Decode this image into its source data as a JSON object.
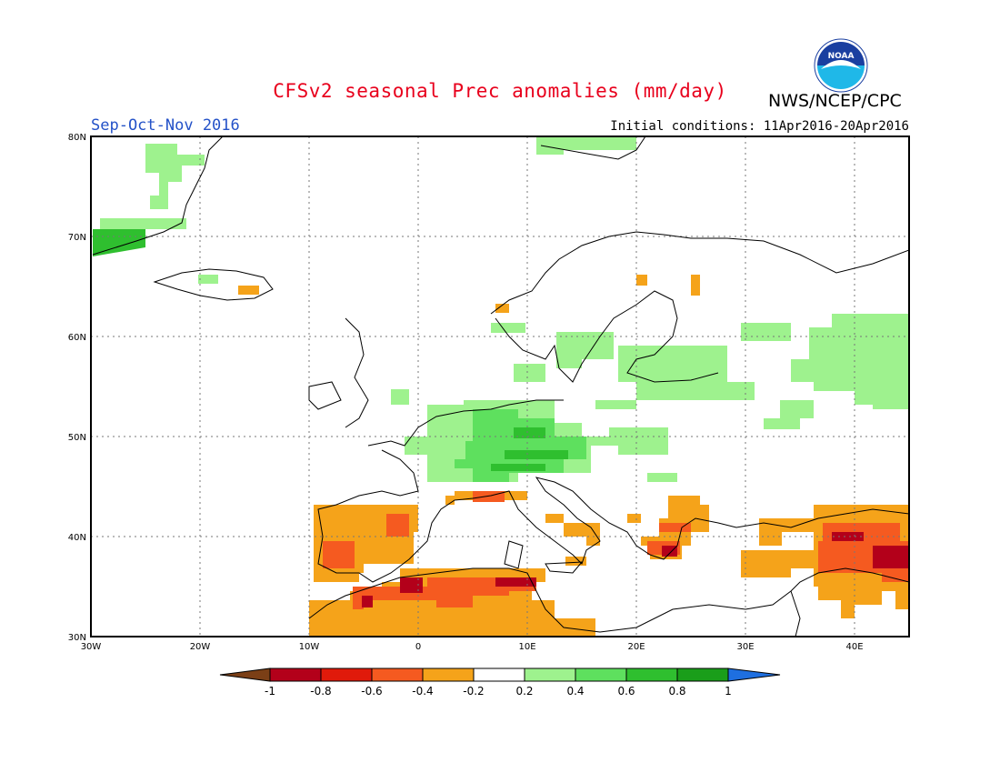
{
  "header": {
    "title": "CFSv2 seasonal Prec anomalies (mm/day)",
    "credit": "NWS/NCEP/CPC",
    "season": "Sep-Oct-Nov 2016",
    "initial_conditions": "Initial conditions: 11Apr2016-20Apr2016",
    "logo_text": "NOAA"
  },
  "map": {
    "lon_labels": [
      "30W",
      "20W",
      "10W",
      "0",
      "10E",
      "20E",
      "30E",
      "40E"
    ],
    "lat_labels": [
      "80N",
      "70N",
      "60N",
      "50N",
      "40N",
      "30N"
    ],
    "lon_range": [
      -30,
      45
    ],
    "lat_range": [
      30,
      80
    ]
  },
  "legend": {
    "tick_labels": [
      "-1",
      "-0.8",
      "-0.6",
      "-0.4",
      "-0.2",
      "0.2",
      "0.4",
      "0.6",
      "0.8",
      "1"
    ],
    "colors": [
      "#7b3f16",
      "#b3001a",
      "#e01a0b",
      "#f55a20",
      "#f5a31a",
      "#ffffff",
      "#9ef28e",
      "#5ee05e",
      "#2fbf2f",
      "#1a9e1a",
      "#1e6fe0"
    ]
  },
  "anomaly_regions": [
    {
      "name": "greenland-green",
      "level": "0.2-0.4",
      "color": "#9ef28e"
    },
    {
      "name": "central-europe-green",
      "level": "0.2-0.6",
      "color": "#5ee05e"
    },
    {
      "name": "russia-green",
      "level": "0.2-0.4",
      "color": "#9ef28e"
    },
    {
      "name": "iberia-orange",
      "level": "-0.4",
      "color": "#f5a31a"
    },
    {
      "name": "north-africa-red",
      "level": "-0.6",
      "color": "#f55a20"
    },
    {
      "name": "turkey-red",
      "level": "-0.6",
      "color": "#f55a20"
    }
  ]
}
